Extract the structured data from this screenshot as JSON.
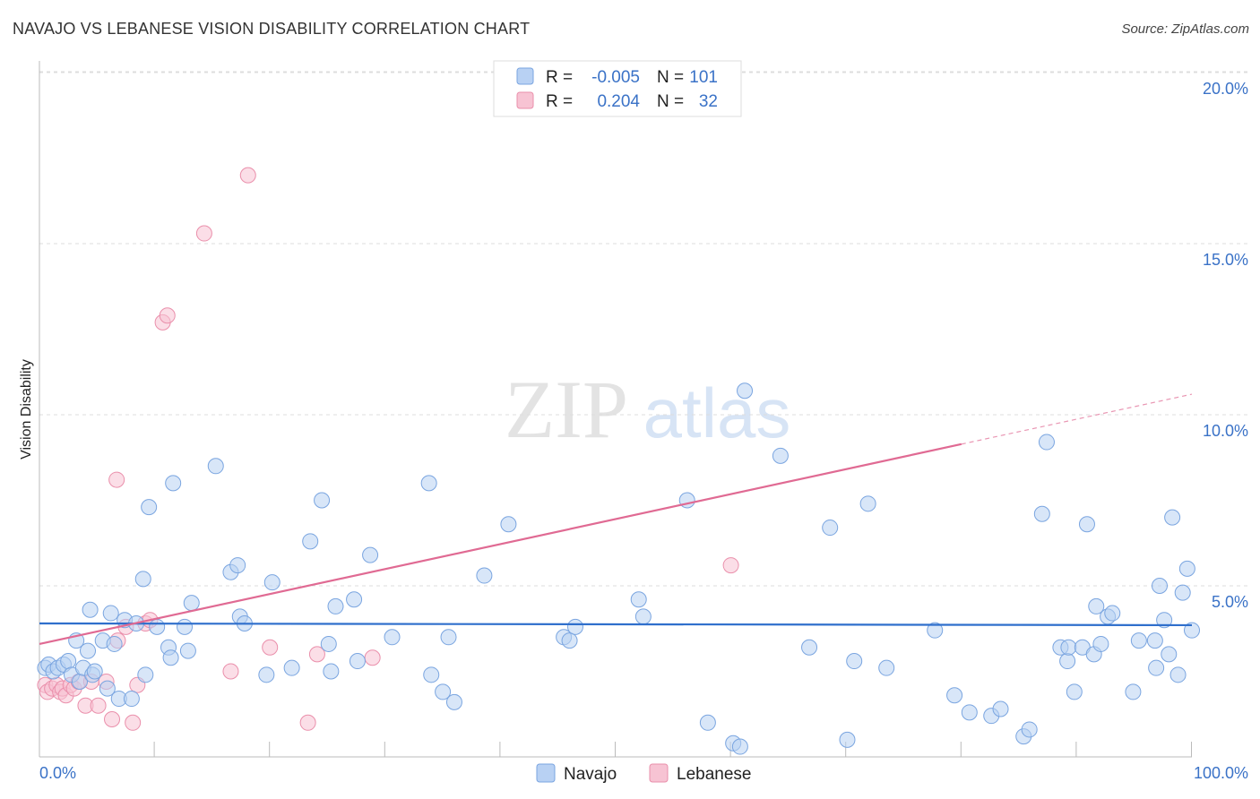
{
  "header": {
    "title": "NAVAJO VS LEBANESE VISION DISABILITY CORRELATION CHART",
    "source": "Source: ZipAtlas.com"
  },
  "watermark": {
    "zip": "ZIP",
    "atlas": "atlas"
  },
  "colors": {
    "navajo_fill": "#b8d1f3",
    "navajo_stroke": "#7aa5e0",
    "navajo_line": "#2f6fcc",
    "lebanese_fill": "#f7c3d3",
    "lebanese_stroke": "#ea8fab",
    "lebanese_line": "#e06a93",
    "tick_text": "#3a72c7",
    "grid": "#dddddd"
  },
  "legend": {
    "rows": [
      {
        "r_label": "R =",
        "r_value": "-0.005",
        "n_label": "N =",
        "n_value": "101"
      },
      {
        "r_label": "R =",
        "r_value": "0.204",
        "n_label": "N =",
        "n_value": "32"
      }
    ]
  },
  "chart_data": {
    "type": "scatter",
    "title": "NAVAJO VS LEBANESE VISION DISABILITY CORRELATION CHART",
    "xlabel": "",
    "ylabel": "Vision Disability",
    "xlim": [
      0,
      100
    ],
    "ylim": [
      0,
      21
    ],
    "y_ticks": [
      {
        "value": 5,
        "label": "5.0%"
      },
      {
        "value": 10,
        "label": "10.0%"
      },
      {
        "value": 15,
        "label": "15.0%"
      },
      {
        "value": 20,
        "label": "20.0%"
      }
    ],
    "x_tick_labels": {
      "min": "0.0%",
      "max": "100.0%"
    },
    "x_minor_ticks": [
      10,
      20,
      30,
      40,
      50,
      60,
      70,
      80,
      90,
      100
    ],
    "grid": true,
    "legend_position": "top-center",
    "series": [
      {
        "name": "Navajo",
        "R": -0.005,
        "N": 101,
        "trend": {
          "x0": 0,
          "y0": 3.9,
          "x1": 100,
          "y1": 3.85,
          "solid_until": 100
        },
        "points": [
          [
            0.5,
            2.6
          ],
          [
            0.8,
            2.7
          ],
          [
            1.2,
            2.5
          ],
          [
            1.6,
            2.6
          ],
          [
            2.1,
            2.7
          ],
          [
            2.5,
            2.8
          ],
          [
            2.8,
            2.4
          ],
          [
            3.2,
            3.4
          ],
          [
            3.5,
            2.2
          ],
          [
            3.8,
            2.6
          ],
          [
            4.2,
            3.1
          ],
          [
            4.4,
            4.3
          ],
          [
            4.6,
            2.4
          ],
          [
            4.8,
            2.5
          ],
          [
            5.5,
            3.4
          ],
          [
            5.9,
            2.0
          ],
          [
            6.2,
            4.2
          ],
          [
            6.5,
            3.3
          ],
          [
            6.9,
            1.7
          ],
          [
            7.4,
            4.0
          ],
          [
            8.0,
            1.7
          ],
          [
            8.4,
            3.9
          ],
          [
            9.0,
            5.2
          ],
          [
            9.2,
            2.4
          ],
          [
            9.5,
            7.3
          ],
          [
            10.2,
            3.8
          ],
          [
            11.2,
            3.2
          ],
          [
            11.4,
            2.9
          ],
          [
            11.6,
            8.0
          ],
          [
            12.9,
            3.1
          ],
          [
            12.6,
            3.8
          ],
          [
            13.2,
            4.5
          ],
          [
            15.3,
            8.5
          ],
          [
            17.4,
            4.1
          ],
          [
            17.8,
            3.9
          ],
          [
            16.6,
            5.4
          ],
          [
            17.2,
            5.6
          ],
          [
            19.7,
            2.4
          ],
          [
            20.2,
            5.1
          ],
          [
            21.9,
            2.6
          ],
          [
            23.5,
            6.3
          ],
          [
            24.5,
            7.5
          ],
          [
            25.1,
            3.3
          ],
          [
            25.3,
            2.5
          ],
          [
            25.7,
            4.4
          ],
          [
            27.3,
            4.6
          ],
          [
            27.6,
            2.8
          ],
          [
            28.7,
            5.9
          ],
          [
            30.6,
            3.5
          ],
          [
            33.8,
            8.0
          ],
          [
            34.0,
            2.4
          ],
          [
            35.0,
            1.9
          ],
          [
            35.5,
            3.5
          ],
          [
            36.0,
            1.6
          ],
          [
            38.6,
            5.3
          ],
          [
            40.7,
            6.8
          ],
          [
            45.5,
            3.5
          ],
          [
            46.0,
            3.4
          ],
          [
            46.5,
            3.8
          ],
          [
            52.0,
            4.6
          ],
          [
            52.4,
            4.1
          ],
          [
            56.2,
            7.5
          ],
          [
            58.0,
            1.0
          ],
          [
            60.2,
            0.4
          ],
          [
            60.8,
            0.3
          ],
          [
            61.2,
            10.7
          ],
          [
            64.3,
            8.8
          ],
          [
            66.8,
            3.2
          ],
          [
            68.6,
            6.7
          ],
          [
            70.1,
            0.5
          ],
          [
            71.9,
            7.4
          ],
          [
            70.7,
            2.8
          ],
          [
            73.5,
            2.6
          ],
          [
            77.7,
            3.7
          ],
          [
            79.4,
            1.8
          ],
          [
            80.7,
            1.3
          ],
          [
            82.6,
            1.2
          ],
          [
            83.4,
            1.4
          ],
          [
            85.4,
            0.6
          ],
          [
            85.9,
            0.8
          ],
          [
            87.0,
            7.1
          ],
          [
            87.4,
            9.2
          ],
          [
            88.6,
            3.2
          ],
          [
            89.2,
            2.8
          ],
          [
            89.3,
            3.2
          ],
          [
            89.8,
            1.9
          ],
          [
            90.5,
            3.2
          ],
          [
            90.9,
            6.8
          ],
          [
            91.5,
            3.0
          ],
          [
            91.7,
            4.4
          ],
          [
            92.1,
            3.3
          ],
          [
            92.7,
            4.1
          ],
          [
            93.1,
            4.2
          ],
          [
            94.9,
            1.9
          ],
          [
            95.4,
            3.4
          ],
          [
            96.8,
            3.4
          ],
          [
            96.9,
            2.6
          ],
          [
            97.2,
            5.0
          ],
          [
            97.6,
            4.0
          ],
          [
            98.0,
            3.0
          ],
          [
            98.3,
            7.0
          ],
          [
            98.8,
            2.4
          ],
          [
            99.2,
            4.8
          ],
          [
            99.6,
            5.5
          ],
          [
            100.0,
            3.7
          ]
        ]
      },
      {
        "name": "Lebanese",
        "R": 0.204,
        "N": 32,
        "trend": {
          "x0": 0,
          "y0": 3.3,
          "x1": 100,
          "y1": 10.6,
          "solid_until": 80
        },
        "points": [
          [
            0.5,
            2.1
          ],
          [
            0.7,
            1.9
          ],
          [
            1.1,
            2.0
          ],
          [
            1.5,
            2.1
          ],
          [
            1.8,
            1.9
          ],
          [
            2.0,
            2.0
          ],
          [
            2.3,
            1.8
          ],
          [
            2.7,
            2.1
          ],
          [
            3.0,
            2.0
          ],
          [
            3.4,
            2.2
          ],
          [
            4.0,
            1.5
          ],
          [
            4.5,
            2.2
          ],
          [
            5.1,
            1.5
          ],
          [
            5.8,
            2.2
          ],
          [
            6.3,
            1.1
          ],
          [
            6.8,
            3.4
          ],
          [
            7.5,
            3.8
          ],
          [
            8.1,
            1.0
          ],
          [
            8.5,
            2.1
          ],
          [
            9.2,
            3.9
          ],
          [
            9.6,
            4.0
          ],
          [
            6.7,
            8.1
          ],
          [
            10.7,
            12.7
          ],
          [
            11.1,
            12.9
          ],
          [
            14.3,
            15.3
          ],
          [
            18.1,
            17.0
          ],
          [
            16.6,
            2.5
          ],
          [
            20.0,
            3.2
          ],
          [
            23.3,
            1.0
          ],
          [
            24.1,
            3.0
          ],
          [
            28.9,
            2.9
          ],
          [
            60.0,
            5.6
          ]
        ]
      }
    ]
  }
}
